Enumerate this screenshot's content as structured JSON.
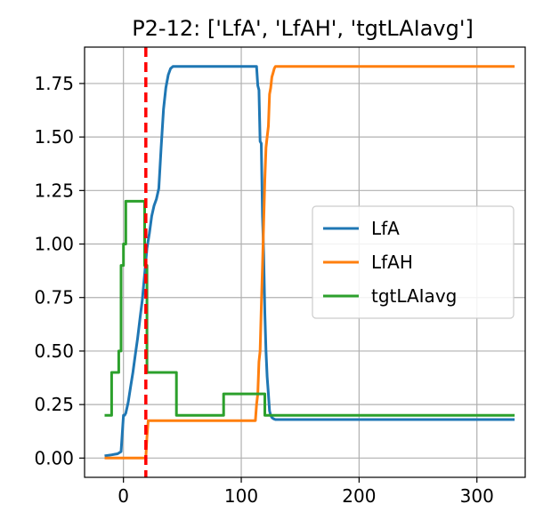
{
  "chart_data": {
    "type": "line",
    "title": "P2-12: ['LfA', 'LfAH', 'tgtLAIavg']",
    "xlabel": "",
    "ylabel": "",
    "xlim": [
      -33,
      341
    ],
    "ylim": [
      -0.09,
      1.92
    ],
    "xticks": [
      0,
      100,
      200,
      300
    ],
    "xtick_labels": [
      "0",
      "100",
      "200",
      "300"
    ],
    "yticks": [
      0,
      0.25,
      0.5,
      0.75,
      1.0,
      1.25,
      1.5,
      1.75
    ],
    "ytick_labels": [
      "0.00",
      "0.25",
      "0.50",
      "0.75",
      "1.00",
      "1.25",
      "1.50",
      "1.75"
    ],
    "grid": true,
    "legend_position": "center-right",
    "vline": {
      "x": 19,
      "color": "#ff0000",
      "style": "dashed"
    },
    "series": [
      {
        "name": "LfA",
        "color": "#1f77b4",
        "x": [
          -16,
          -10,
          -5,
          -2,
          0,
          1,
          2,
          4,
          6,
          8,
          10,
          12,
          14,
          16,
          18,
          20,
          22,
          24,
          26,
          28,
          30,
          32,
          34,
          36,
          38,
          40,
          42,
          44,
          46,
          50,
          60,
          80,
          100,
          113,
          114,
          115,
          116,
          117,
          118,
          119,
          120,
          121,
          122,
          123,
          124,
          125,
          126,
          127,
          128,
          129,
          130,
          332
        ],
        "y": [
          0.01,
          0.015,
          0.02,
          0.03,
          0.2,
          0.2,
          0.21,
          0.26,
          0.33,
          0.4,
          0.48,
          0.56,
          0.65,
          0.74,
          0.86,
          0.98,
          1.05,
          1.13,
          1.18,
          1.21,
          1.26,
          1.45,
          1.63,
          1.73,
          1.79,
          1.82,
          1.83,
          1.83,
          1.83,
          1.83,
          1.83,
          1.83,
          1.83,
          1.83,
          1.74,
          1.72,
          1.48,
          1.47,
          1.13,
          0.95,
          0.68,
          0.5,
          0.38,
          0.3,
          0.22,
          0.2,
          0.19,
          0.185,
          0.182,
          0.18,
          0.18,
          0.18
        ]
      },
      {
        "name": "LfAH",
        "color": "#ff7f0e",
        "x": [
          -16,
          19,
          20,
          21,
          22,
          40,
          60,
          80,
          100,
          112,
          113,
          114,
          115,
          116,
          117,
          118,
          119,
          120,
          121,
          122,
          123,
          124,
          125,
          126,
          127,
          128,
          129,
          130,
          200,
          332
        ],
        "y": [
          0,
          0,
          0.1,
          0.175,
          0.175,
          0.175,
          0.175,
          0.175,
          0.175,
          0.175,
          0.25,
          0.3,
          0.45,
          0.5,
          0.7,
          0.9,
          1.1,
          1.3,
          1.45,
          1.5,
          1.55,
          1.7,
          1.73,
          1.78,
          1.8,
          1.82,
          1.83,
          1.83,
          1.83,
          1.83
        ]
      },
      {
        "name": "tgtLAIavg",
        "color": "#2ca02c",
        "x": [
          -16,
          -10,
          -10,
          -4,
          -4,
          -2,
          -2,
          0,
          0,
          2,
          2,
          4,
          4,
          18,
          18,
          20,
          20,
          22,
          22,
          40,
          40,
          45,
          45,
          85,
          85,
          110,
          110,
          120,
          120,
          332
        ],
        "y": [
          0.2,
          0.2,
          0.4,
          0.4,
          0.5,
          0.5,
          0.9,
          0.9,
          1.0,
          1.0,
          1.2,
          1.2,
          1.2,
          1.2,
          0.9,
          0.9,
          0.4,
          0.4,
          0.4,
          0.4,
          0.4,
          0.4,
          0.2,
          0.2,
          0.3,
          0.3,
          0.3,
          0.3,
          0.2,
          0.2
        ]
      }
    ]
  }
}
